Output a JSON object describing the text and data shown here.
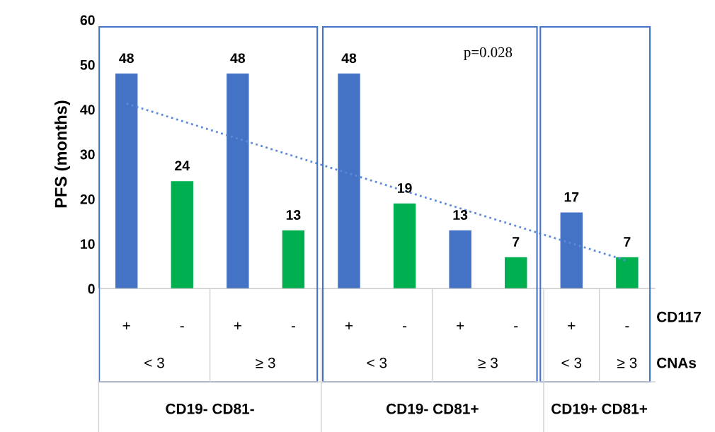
{
  "chart_data": {
    "type": "bar",
    "ylabel": "PFS (months)",
    "categories": [
      "+",
      "-",
      "+",
      "-",
      "+",
      "-",
      "+",
      "-",
      "+",
      "-"
    ],
    "series": [
      {
        "values": [
          48,
          24,
          48,
          13,
          48,
          19,
          13,
          7,
          17,
          7
        ],
        "colors": [
          "#4472c4",
          "#00b050",
          "#4472c4",
          "#00b050",
          "#4472c4",
          "#00b050",
          "#4472c4",
          "#00b050",
          "#4472c4",
          "#00b050"
        ]
      },
      {
        "type": "line",
        "values": [
          41.3,
          37.4,
          33.5,
          29.6,
          25.7,
          21.8,
          17.9,
          14.0,
          10.1,
          6.2
        ],
        "value_labels": [
          null,
          null,
          null,
          null,
          null,
          null,
          null,
          null,
          null,
          null
        ],
        "color": "#5b8ad8",
        "line_style": "dotted",
        "marker": "none"
      }
    ],
    "data_labels": true,
    "ylim": [
      0,
      60
    ],
    "yticks": [
      0,
      10,
      20,
      30,
      40,
      50,
      60
    ],
    "grid": false,
    "legend": false,
    "annotations": [
      "CD117",
      "CNAs",
      "< 3",
      "≥ 3",
      "< 3",
      "≥ 3",
      "< 3",
      "≥ 3",
      "CD19- CD81-",
      "CD19- CD81+",
      "CD19+ CD81+",
      "p=0.028"
    ]
  }
}
